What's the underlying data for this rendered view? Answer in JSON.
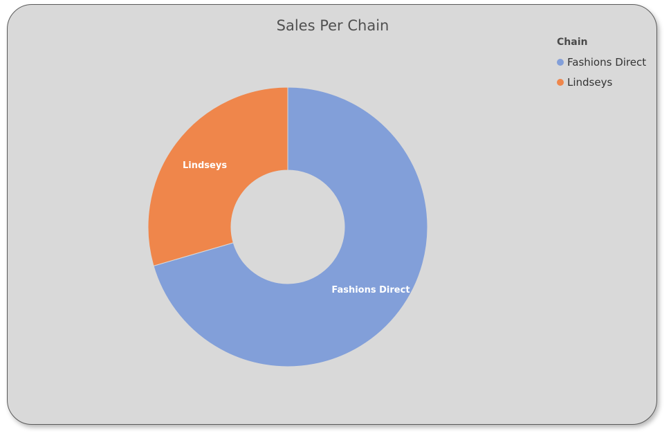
{
  "chart_data": {
    "type": "pie",
    "title": "Sales Per Chain",
    "legend_title": "Chain",
    "legend_position": "top-right",
    "donut": true,
    "slices": [
      {
        "label": "Fashions Direct",
        "value": 70.5,
        "color": "#829fd9"
      },
      {
        "label": "Lindseys",
        "value": 29.5,
        "color": "#ef864b"
      }
    ]
  },
  "colors": {
    "card_background": "#d9d9d9",
    "card_border": "#5a5a5a"
  }
}
